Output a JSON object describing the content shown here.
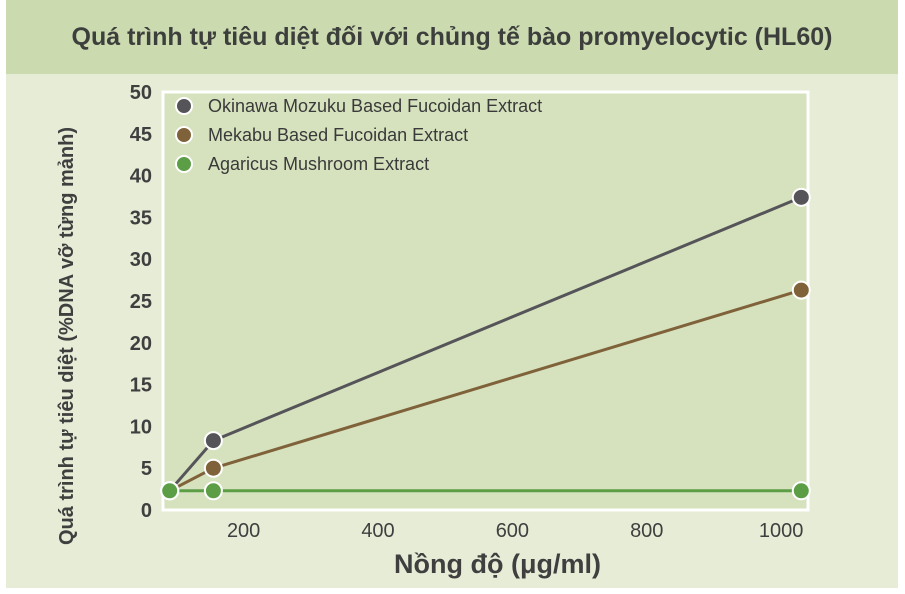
{
  "title": "Quá trình tự tiêu diệt đối với chủng tế bào promyelocytic (HL60)",
  "colors": {
    "background": "#e6ecd6",
    "title_bar": "#ccdab0",
    "plot_area": "#d6e2be",
    "okinawa": "#555559",
    "mekabu": "#80623a",
    "agaricus": "#5c9e45"
  },
  "chart_data": {
    "type": "line",
    "title": "Quá trình tự tiêu diệt đối với chủng tế bào promyelocytic (HL60)",
    "xlabel": "Nồng độ (μg/ml)",
    "ylabel": "Quá trình tự tiêu diệt (%DNA vỡ từng mảnh)",
    "xlim": [
      80,
      1040
    ],
    "ylim": [
      0,
      50
    ],
    "x_ticks": [
      "200",
      "400",
      "600",
      "800",
      "1000"
    ],
    "x_tick_values": [
      200,
      400,
      600,
      800,
      1000
    ],
    "y_ticks": [
      "0",
      "5",
      "10",
      "15",
      "20",
      "25",
      "30",
      "35",
      "40",
      "45",
      "50"
    ],
    "y_tick_values": [
      0,
      5,
      10,
      15,
      20,
      25,
      30,
      35,
      40,
      45,
      50
    ],
    "grid": false,
    "legend_position": "top-left",
    "series": [
      {
        "name": "Okinawa Mozuku Based Fucoidan Extract",
        "color_key": "okinawa",
        "points": [
          [
            90,
            2.3
          ],
          [
            155,
            8.3
          ],
          [
            1030,
            37.4
          ]
        ]
      },
      {
        "name": "Mekabu Based Fucoidan Extract",
        "color_key": "mekabu",
        "points": [
          [
            90,
            2.3
          ],
          [
            155,
            5.0
          ],
          [
            1030,
            26.3
          ]
        ]
      },
      {
        "name": "Agaricus Mushroom Extract",
        "color_key": "agaricus",
        "points": [
          [
            90,
            2.3
          ],
          [
            155,
            2.3
          ],
          [
            1030,
            2.3
          ]
        ]
      }
    ]
  }
}
